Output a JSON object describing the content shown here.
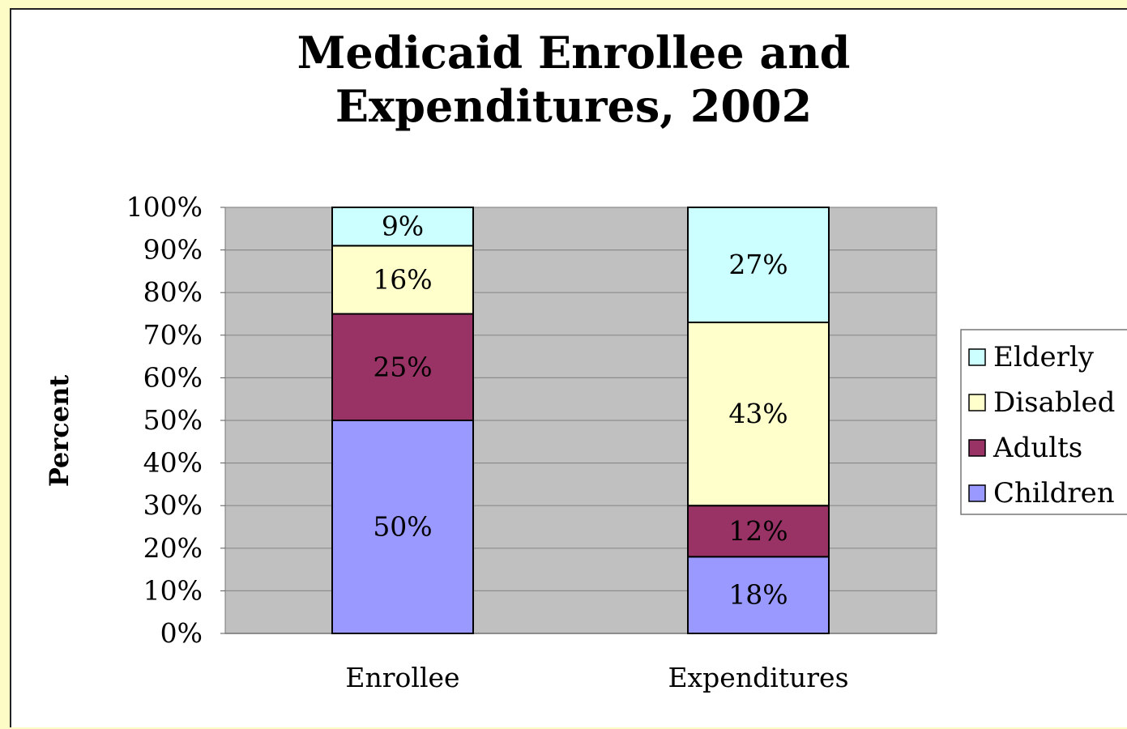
{
  "chart_data": {
    "type": "bar",
    "stacked": true,
    "title_lines": [
      "Medicaid Enrollee and",
      "Expenditures, 2002"
    ],
    "xlabel": "",
    "ylabel": "Percent",
    "ylim": [
      0,
      100
    ],
    "y_ticks": [
      0,
      10,
      20,
      30,
      40,
      50,
      60,
      70,
      80,
      90,
      100
    ],
    "y_tick_labels": [
      "0%",
      "10%",
      "20%",
      "30%",
      "40%",
      "50%",
      "60%",
      "70%",
      "80%",
      "90%",
      "100%"
    ],
    "categories": [
      "Enrollee",
      "Expenditures"
    ],
    "series": [
      {
        "name": "Children",
        "color": "#9999ff",
        "values": [
          50,
          18
        ],
        "labels": [
          "50%",
          "18%"
        ]
      },
      {
        "name": "Adults",
        "color": "#993366",
        "values": [
          25,
          12
        ],
        "labels": [
          "25%",
          "12%"
        ]
      },
      {
        "name": "Disabled",
        "color": "#ffffcc",
        "values": [
          16,
          43
        ],
        "labels": [
          "16%",
          "43%"
        ]
      },
      {
        "name": "Elderly",
        "color": "#ccffff",
        "values": [
          9,
          27
        ],
        "labels": [
          "9%",
          "27%"
        ]
      }
    ],
    "legend_order": [
      "Elderly",
      "Disabled",
      "Adults",
      "Children"
    ],
    "legend_position": "right",
    "grid": true,
    "plot_background": "#c0c0c0"
  },
  "colors": {
    "page_background": "#fdfbc6",
    "chart_background": "#ffffff",
    "gridline": "#8c8c8c",
    "bar_outline": "#000000"
  }
}
